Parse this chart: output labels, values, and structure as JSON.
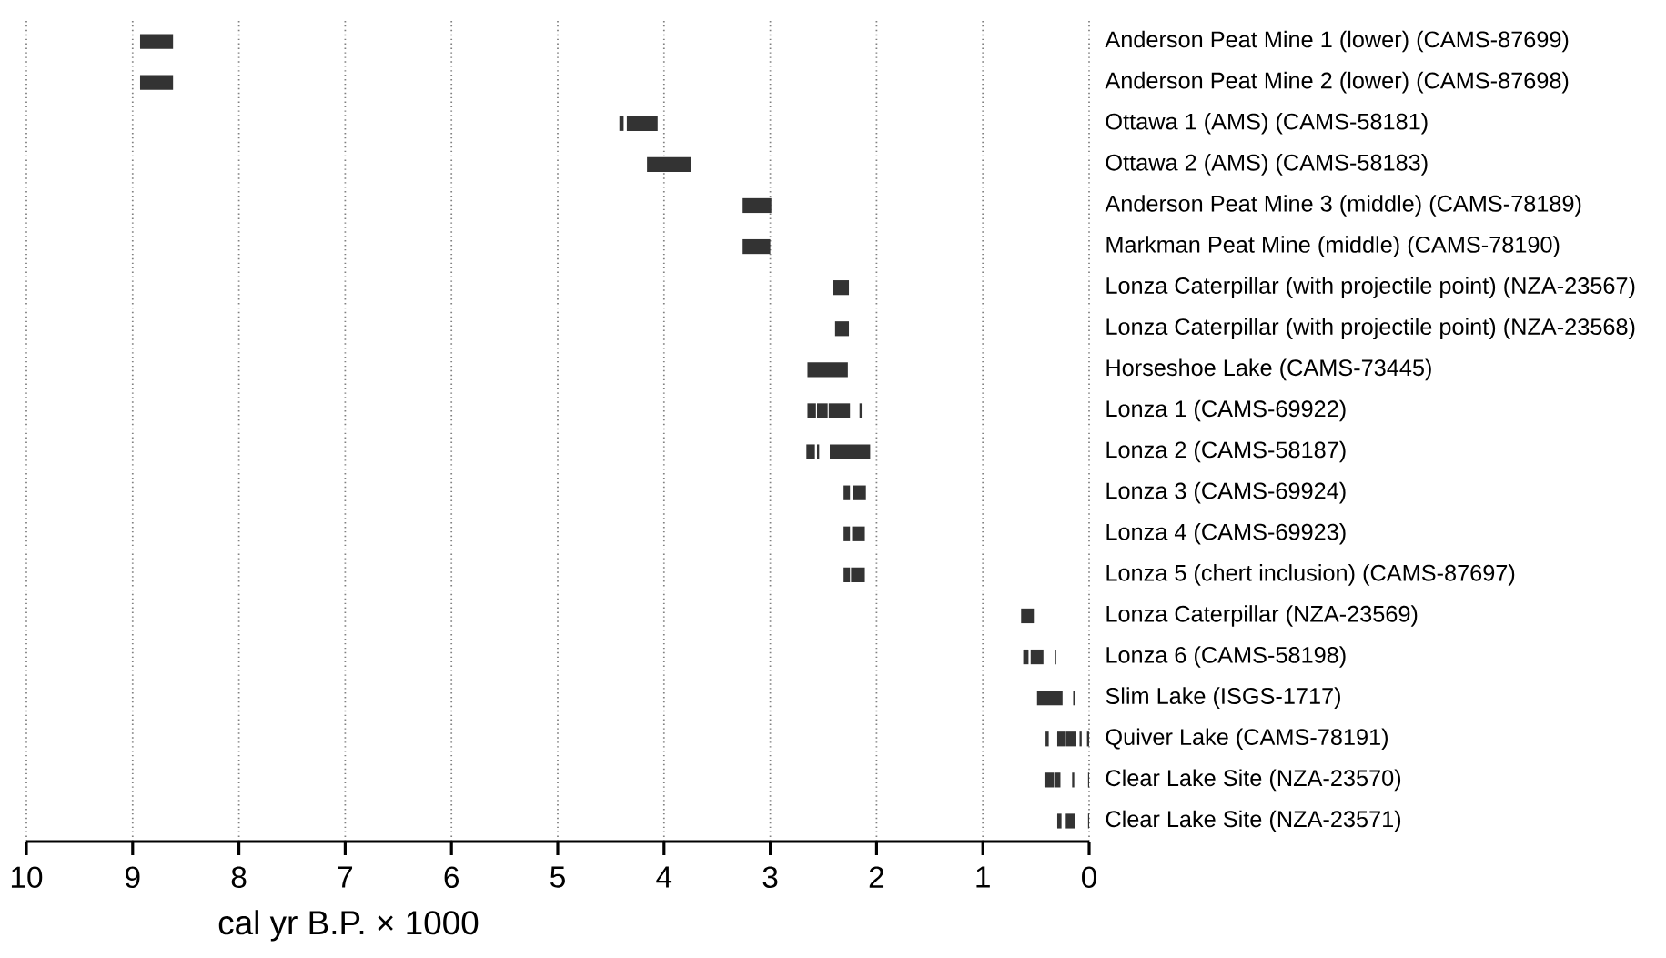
{
  "chart_data": {
    "type": "bar",
    "orientation": "horizontal",
    "xlabel": "cal yr B.P. × 1000",
    "categories": [
      "Anderson Peat Mine 1 (lower) (CAMS-87699)",
      "Anderson Peat Mine 2 (lower) (CAMS-87698)",
      "Ottawa 1 (AMS) (CAMS-58181)",
      "Ottawa 2 (AMS) (CAMS-58183)",
      "Anderson Peat Mine 3 (middle) (CAMS-78189)",
      "Markman Peat Mine (middle) (CAMS-78190)",
      "Lonza Caterpillar (with projectile point) (NZA-23567)",
      "Lonza Caterpillar (with projectile point) (NZA-23568)",
      "Horseshoe Lake (CAMS-73445)",
      "Lonza 1 (CAMS-69922)",
      "Lonza 2 (CAMS-58187)",
      "Lonza 3 (CAMS-69924)",
      "Lonza 4 (CAMS-69923)",
      "Lonza 5 (chert inclusion) (CAMS-87697)",
      "Lonza Caterpillar (NZA-23569)",
      "Lonza 6 (CAMS-58198)",
      "Slim Lake (ISGS-1717)",
      "Quiver Lake (CAMS-78191)",
      "Clear Lake Site (NZA-23570)",
      "Clear Lake Site (NZA-23571)"
    ],
    "series": [
      {
        "color": "#333333",
        "base": [
          8.62,
          8.62,
          4.38,
          3.75,
          2.99,
          3.0,
          2.26,
          2.26,
          2.27,
          2.57,
          2.58,
          2.25,
          2.25,
          2.25,
          0.52,
          0.57,
          0.25,
          0.38,
          0.33,
          0.26
        ],
        "values": [
          0.31,
          0.31,
          0.04,
          0.41,
          0.27,
          0.26,
          0.15,
          0.13,
          0.38,
          0.08,
          0.08,
          0.06,
          0.06,
          0.06,
          0.12,
          0.05,
          0.24,
          0.03,
          0.09,
          0.04
        ]
      },
      {
        "color": "#333333",
        "base": [
          null,
          null,
          4.06,
          null,
          null,
          null,
          null,
          null,
          null,
          2.46,
          2.54,
          2.1,
          2.11,
          2.11,
          null,
          0.43,
          0.13,
          0.23,
          0.27,
          0.13
        ],
        "values": [
          null,
          null,
          0.29,
          null,
          null,
          null,
          null,
          null,
          null,
          0.1,
          0.02,
          0.12,
          0.12,
          0.13,
          null,
          0.12,
          0.02,
          0.07,
          0.05,
          0.09
        ]
      },
      {
        "color": "#333333",
        "base": [
          null,
          null,
          null,
          null,
          null,
          null,
          null,
          null,
          null,
          2.25,
          2.06,
          null,
          null,
          null,
          null,
          0.31,
          null,
          0.12,
          0.14,
          0.0
        ],
        "values": [
          null,
          null,
          null,
          null,
          null,
          null,
          null,
          null,
          null,
          0.2,
          0.38,
          null,
          null,
          null,
          null,
          0.01,
          null,
          0.1,
          0.02,
          0.01
        ]
      },
      {
        "color": "#333333",
        "base": [
          null,
          null,
          null,
          null,
          null,
          null,
          null,
          null,
          null,
          2.14,
          null,
          null,
          null,
          null,
          null,
          null,
          null,
          0.07,
          0.0,
          null
        ],
        "values": [
          null,
          null,
          null,
          null,
          null,
          null,
          null,
          null,
          null,
          0.02,
          null,
          null,
          null,
          null,
          null,
          null,
          null,
          0.02,
          0.01,
          null
        ]
      },
      {
        "color": "#333333",
        "base": [
          null,
          null,
          null,
          null,
          null,
          null,
          null,
          null,
          null,
          null,
          null,
          null,
          null,
          null,
          null,
          null,
          null,
          0.0,
          null,
          null
        ],
        "values": [
          null,
          null,
          null,
          null,
          null,
          null,
          null,
          null,
          null,
          null,
          null,
          null,
          null,
          null,
          null,
          null,
          null,
          0.02,
          null,
          null
        ]
      }
    ],
    "xlim": [
      10,
      0
    ],
    "xticks": [
      10,
      9,
      8,
      7,
      6,
      5,
      4,
      3,
      2,
      1,
      0
    ],
    "grid": "x"
  }
}
